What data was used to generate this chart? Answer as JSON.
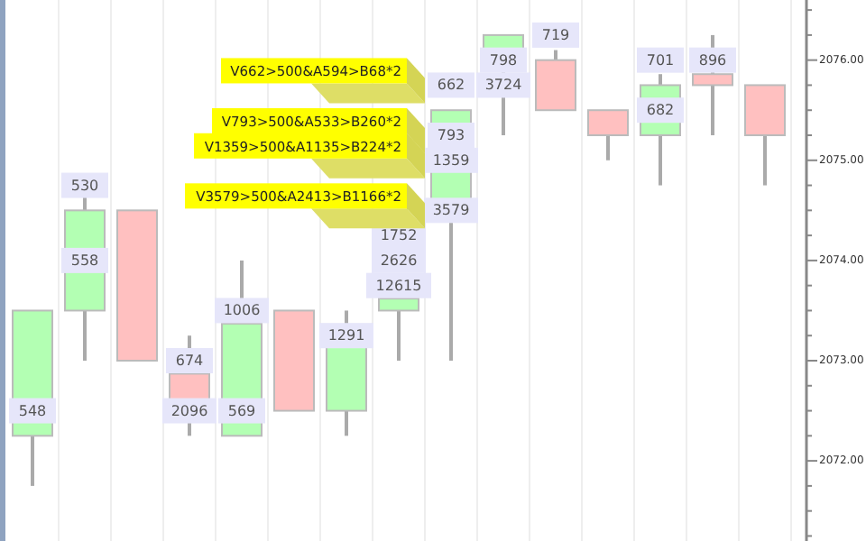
{
  "chart_data": {
    "type": "candlestick",
    "categories": [
      null,
      null,
      null,
      null,
      null,
      null,
      null,
      null,
      null,
      null,
      null,
      null,
      null,
      null,
      null
    ],
    "tick_labels": "y",
    "grid": "x",
    "ohlc": [
      [
        2072.25,
        2073.5,
        2071.75,
        2073.5
      ],
      [
        2073.5,
        2074.63,
        2073.0,
        2074.5
      ],
      [
        2074.5,
        2074.5,
        2073.0,
        2073.0
      ],
      [
        2072.87,
        2073.25,
        2072.25,
        2072.6
      ],
      [
        2072.25,
        2074.0,
        2072.25,
        2073.37
      ],
      [
        2073.5,
        2073.5,
        2072.5,
        2072.5
      ],
      [
        2072.5,
        2073.5,
        2072.25,
        2073.2
      ],
      [
        2073.5,
        2073.62,
        2073.0,
        2073.62
      ],
      [
        2074.6,
        2075.5,
        2073.0,
        2075.5
      ],
      [
        2076.1,
        2076.25,
        2075.25,
        2076.25
      ],
      [
        2076.0,
        2076.1,
        2075.5,
        2075.5
      ],
      [
        2075.5,
        2075.5,
        2075.0,
        2075.25
      ],
      [
        2075.25,
        2075.86,
        2074.75,
        2075.75
      ],
      [
        2075.86,
        2076.25,
        2075.25,
        2075.75
      ],
      [
        2075.75,
        2075.75,
        2074.75,
        2075.25
      ]
    ],
    "colors": [
      "#b3ffb3",
      "#b3ffb3",
      "#ffc0c0",
      "#ffc0c0",
      "#b3ffb3",
      "#ffc0c0",
      "#b3ffb3",
      "#b3ffb3",
      "#b3ffb3",
      "#b3ffb3",
      "#ffc0c0",
      "#ffc0c0",
      "#b3ffb3",
      "#ffc0c0",
      "#ffc0c0"
    ],
    "series": [
      {
        "type": "scatter",
        "marker": "square",
        "color": "#e6e6fa",
        "values": [
          2072.5,
          2074.0,
          null,
          2072.5,
          2072.5,
          null,
          2073.25,
          2073.75,
          2074.5,
          2075.75,
          2076.25,
          null,
          2075.5,
          2076.0,
          null
        ]
      },
      {
        "type": "scatter",
        "marker": "square",
        "color": "#e6e6fa",
        "values": [
          null,
          2074.75,
          null,
          2073.0,
          2073.5,
          null,
          null,
          2074.0,
          2075.0,
          2076.0,
          null,
          null,
          2076.0,
          null,
          null
        ]
      },
      {
        "type": "scatter",
        "marker": "square",
        "color": "#e6e6fa",
        "values": [
          null,
          null,
          null,
          null,
          null,
          null,
          null,
          2074.25,
          2075.25,
          null,
          null,
          null,
          null,
          null,
          null
        ]
      },
      {
        "type": "scatter",
        "marker": "square",
        "color": "#e6e6fa",
        "values": [
          null,
          null,
          null,
          null,
          null,
          null,
          null,
          null,
          2075.75,
          null,
          null,
          null,
          null,
          null,
          null
        ]
      }
    ],
    "ylim": [
      2071.2,
      2076.6
    ],
    "yticks": [
      {
        "value": 2071.25,
        "label": null
      },
      {
        "value": 2071.5,
        "label": null
      },
      {
        "value": 2071.75,
        "label": null
      },
      {
        "value": 2072,
        "label": "2072.00"
      },
      {
        "value": 2072.25,
        "label": null
      },
      {
        "value": 2072.5,
        "label": null
      },
      {
        "value": 2072.75,
        "label": null
      },
      {
        "value": 2073,
        "label": "2073.00"
      },
      {
        "value": 2073.25,
        "label": null
      },
      {
        "value": 2073.5,
        "label": null
      },
      {
        "value": 2073.75,
        "label": null
      },
      {
        "value": 2074,
        "label": "2074.00"
      },
      {
        "value": 2074.25,
        "label": null
      },
      {
        "value": 2074.5,
        "label": null
      },
      {
        "value": 2074.75,
        "label": null
      },
      {
        "value": 2075,
        "label": "2075.00"
      },
      {
        "value": 2075.25,
        "label": null
      },
      {
        "value": 2075.5,
        "label": null
      },
      {
        "value": 2075.75,
        "label": null
      },
      {
        "value": 2076,
        "label": "2076.00"
      },
      {
        "value": 2076.25,
        "label": null
      },
      {
        "value": 2076.5,
        "label": null
      }
    ],
    "annotations": [
      "548",
      "558",
      "2096",
      "569",
      "1291",
      "12615",
      "3579",
      "3724",
      "719",
      "682",
      "896",
      "530",
      "674",
      "1006",
      "2626",
      "1359",
      "798",
      "701",
      "1752",
      "793",
      "662",
      "V662>500&A594>B68*2",
      "V793>500&A533>B260*2",
      "V1359>500&A1135>B224*2",
      "V3579>500&A2413>B1166*2"
    ]
  }
}
